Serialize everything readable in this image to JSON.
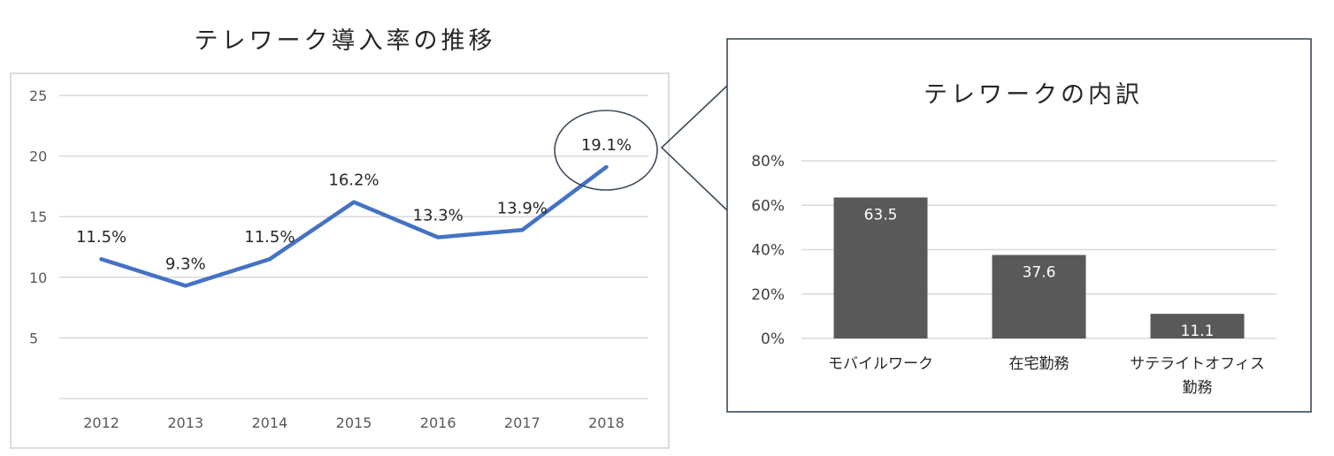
{
  "colors": {
    "line": "#4472C4",
    "bar": "#595959",
    "grid": "#d9d9d9",
    "frame_left": "#d0d0d0",
    "frame_right": "#3c4a5a",
    "text": "#262626",
    "bar_label": "#ffffff"
  },
  "chart_data": [
    {
      "type": "line",
      "title": "テレワーク導入率の推移",
      "xlabel": "",
      "ylabel": "",
      "x": [
        "2012",
        "2013",
        "2014",
        "2015",
        "2016",
        "2017",
        "2018"
      ],
      "series": [
        {
          "values": [
            11.5,
            9.3,
            11.5,
            16.2,
            13.3,
            13.9,
            19.1
          ],
          "data_labels": [
            "11.5%",
            "9.3%",
            "11.5%",
            "16.2%",
            "13.3%",
            "13.9%",
            "19.1%"
          ]
        }
      ],
      "ylim": [
        0,
        25
      ],
      "yticks": [
        "5",
        "10",
        "15",
        "20",
        "25"
      ],
      "grid": true,
      "legend": "none",
      "highlight": {
        "x": "2018",
        "shape": "circle"
      }
    },
    {
      "type": "bar",
      "title": "テレワークの内訳",
      "xlabel": "",
      "ylabel": "",
      "categories": [
        "モバイルワーク",
        "在宅勤務",
        "サテライトオフィス勤務"
      ],
      "category_lines": [
        [
          "モバイルワーク"
        ],
        [
          "在宅勤務"
        ],
        [
          "サテライトオフィス",
          "勤務"
        ]
      ],
      "values": [
        63.5,
        37.6,
        11.1
      ],
      "data_labels": [
        "63.5",
        "37.6",
        "11.1"
      ],
      "ylim": [
        0,
        80
      ],
      "yticks": [
        "0%",
        "20%",
        "40%",
        "60%",
        "80%"
      ],
      "grid": true,
      "legend": "none"
    }
  ]
}
